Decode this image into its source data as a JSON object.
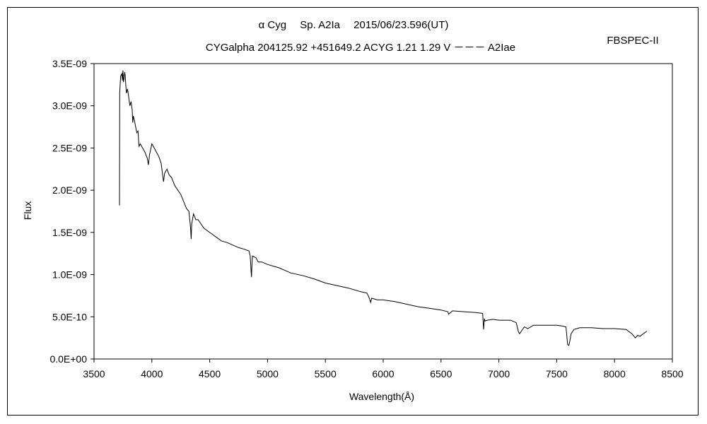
{
  "chart_data": {
    "type": "line",
    "title": "α Cyg　 Sp. A2Ia　 2015/06/23.596(UT)",
    "subtitle": "CYGalpha 204125.92 +451649.2 ACYG 1.21 1.29 V －－－ A2Iae",
    "corner_label": "FBSPEC-II",
    "xlabel": "Wavelength(Å)",
    "ylabel": "Flux",
    "xlim": [
      3500,
      8500
    ],
    "ylim": [
      0,
      3.5e-09
    ],
    "x_ticks": [
      3500,
      4000,
      4500,
      5000,
      5500,
      6000,
      6500,
      7000,
      7500,
      8000,
      8500
    ],
    "x_tick_labels": [
      "3500",
      "4000",
      "4500",
      "5000",
      "5500",
      "6000",
      "6500",
      "7000",
      "7500",
      "8000",
      "8500"
    ],
    "y_ticks": [
      0,
      5e-10,
      1e-09,
      1.5e-09,
      2e-09,
      2.5e-09,
      3e-09,
      3.5e-09
    ],
    "y_tick_labels": [
      "0.0E+00",
      "5.0E-10",
      "1.0E-09",
      "1.5E-09",
      "2.0E-09",
      "2.5E-09",
      "3.0E-09",
      "3.5E-09"
    ],
    "grid": false,
    "legend": false,
    "line_color": "#000000",
    "series": [
      {
        "x": [
          3720,
          3722,
          3730,
          3740,
          3745,
          3750,
          3755,
          3760,
          3765,
          3770,
          3775,
          3780,
          3790,
          3800,
          3810,
          3820,
          3830,
          3835,
          3840,
          3850,
          3860,
          3870,
          3880,
          3889,
          3900,
          3920,
          3940,
          3960,
          3970,
          3980,
          4000,
          4020,
          4040,
          4060,
          4080,
          4101,
          4110,
          4130,
          4150,
          4170,
          4200,
          4250,
          4300,
          4320,
          4335,
          4340,
          4345,
          4360,
          4380,
          4400,
          4450,
          4500,
          4550,
          4600,
          4650,
          4700,
          4750,
          4800,
          4840,
          4850,
          4861,
          4865,
          4870,
          4900,
          4920,
          4950,
          5000,
          5050,
          5100,
          5150,
          5200,
          5300,
          5400,
          5500,
          5600,
          5700,
          5800,
          5860,
          5880,
          5892,
          5900,
          5950,
          6000,
          6100,
          6200,
          6300,
          6400,
          6500,
          6560,
          6565,
          6600,
          6700,
          6800,
          6860,
          6868,
          6875,
          6880,
          6900,
          6950,
          7000,
          7050,
          7100,
          7150,
          7170,
          7180,
          7200,
          7220,
          7250,
          7300,
          7400,
          7500,
          7550,
          7580,
          7595,
          7605,
          7615,
          7625,
          7650,
          7700,
          7800,
          7900,
          8000,
          8100,
          8150,
          8180,
          8200,
          8220,
          8250,
          8280
        ],
        "y": [
          1.82e-09,
          3.15e-09,
          3.35e-09,
          3.38e-09,
          3.3e-09,
          3.42e-09,
          3.28e-09,
          3.32e-09,
          3.4e-09,
          3.35e-09,
          3.24e-09,
          3.15e-09,
          3.2e-09,
          3.1e-09,
          3e-09,
          3.05e-09,
          2.95e-09,
          2.8e-09,
          2.88e-09,
          2.82e-09,
          2.75e-09,
          2.68e-09,
          2.7e-09,
          2.52e-09,
          2.55e-09,
          2.5e-09,
          2.45e-09,
          2.38e-09,
          2.3e-09,
          2.42e-09,
          2.55e-09,
          2.5e-09,
          2.45e-09,
          2.4e-09,
          2.32e-09,
          2.1e-09,
          2.2e-09,
          2.25e-09,
          2.18e-09,
          2.15e-09,
          2.05e-09,
          1.95e-09,
          1.78e-09,
          1.75e-09,
          1.55e-09,
          1.42e-09,
          1.6e-09,
          1.72e-09,
          1.65e-09,
          1.65e-09,
          1.55e-09,
          1.5e-09,
          1.45e-09,
          1.4e-09,
          1.38e-09,
          1.35e-09,
          1.32e-09,
          1.3e-09,
          1.28e-09,
          1.22e-09,
          9.7e-10,
          1.1e-09,
          1.22e-09,
          1.2e-09,
          1.15e-09,
          1.15e-09,
          1.12e-09,
          1.1e-09,
          1.08e-09,
          1.05e-09,
          1.02e-09,
          9.9e-10,
          9.5e-10,
          9e-10,
          8.7e-10,
          8.4e-10,
          8e-10,
          7.8e-10,
          7.2e-10,
          6.7e-10,
          7.2e-10,
          7e-10,
          7e-10,
          6.8e-10,
          6.5e-10,
          6.2e-10,
          6e-10,
          5.8e-10,
          5.6e-10,
          5.3e-10,
          5.7e-10,
          5.6e-10,
          5.5e-10,
          5.4e-10,
          3.5e-10,
          4.8e-10,
          4.5e-10,
          4.6e-10,
          4.7e-10,
          4.6e-10,
          4.6e-10,
          4.6e-10,
          4.3e-10,
          3.2e-10,
          3e-10,
          3.4e-10,
          3.8e-10,
          3.6e-10,
          4e-10,
          4e-10,
          4e-10,
          3.9e-10,
          3.8e-10,
          1.7e-10,
          1.6e-10,
          2.2e-10,
          3e-10,
          3.5e-10,
          3.7e-10,
          3.7e-10,
          3.6e-10,
          3.6e-10,
          3.5e-10,
          3e-10,
          2.5e-10,
          2.8e-10,
          2.7e-10,
          3e-10,
          3.3e-10
        ]
      }
    ]
  }
}
